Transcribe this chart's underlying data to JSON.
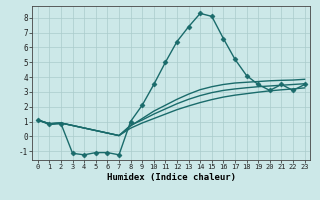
{
  "title": "",
  "xlabel": "Humidex (Indice chaleur)",
  "background_color": "#cce8e8",
  "grid_color": "#aacccc",
  "line_color": "#1a6b6b",
  "xlim": [
    -0.5,
    23.5
  ],
  "ylim": [
    -1.6,
    8.8
  ],
  "yticks": [
    -1,
    0,
    1,
    2,
    3,
    4,
    5,
    6,
    7,
    8
  ],
  "xticks": [
    0,
    1,
    2,
    3,
    4,
    5,
    6,
    7,
    8,
    9,
    10,
    11,
    12,
    13,
    14,
    15,
    16,
    17,
    18,
    19,
    20,
    21,
    22,
    23
  ],
  "series": [
    {
      "x": [
        0,
        1,
        2,
        3,
        4,
        5,
        6,
        7,
        8,
        9,
        10,
        11,
        12,
        13,
        14,
        15,
        16,
        17,
        18,
        19,
        20,
        21,
        22,
        23
      ],
      "y": [
        1.1,
        0.8,
        0.85,
        -1.15,
        -1.25,
        -1.1,
        -1.1,
        -1.25,
        1.0,
        2.1,
        3.5,
        5.0,
        6.4,
        7.4,
        8.3,
        8.1,
        6.6,
        5.2,
        4.1,
        3.5,
        3.1,
        3.5,
        3.1,
        3.5
      ],
      "marker": "D",
      "markersize": 2.5,
      "linewidth": 1.0
    },
    {
      "x": [
        0,
        1,
        2,
        7,
        8,
        9,
        10,
        11,
        12,
        13,
        14,
        15,
        16,
        17,
        18,
        19,
        20,
        21,
        22,
        23
      ],
      "y": [
        1.1,
        0.85,
        0.9,
        0.05,
        0.7,
        1.2,
        1.7,
        2.1,
        2.5,
        2.85,
        3.15,
        3.35,
        3.5,
        3.6,
        3.65,
        3.7,
        3.75,
        3.78,
        3.8,
        3.85
      ],
      "marker": null,
      "markersize": 0,
      "linewidth": 1.0
    },
    {
      "x": [
        0,
        1,
        2,
        7,
        8,
        9,
        10,
        11,
        12,
        13,
        14,
        15,
        16,
        17,
        18,
        19,
        20,
        21,
        22,
        23
      ],
      "y": [
        1.1,
        0.85,
        0.9,
        0.05,
        0.75,
        1.1,
        1.5,
        1.85,
        2.2,
        2.5,
        2.75,
        2.95,
        3.1,
        3.2,
        3.28,
        3.35,
        3.4,
        3.45,
        3.5,
        3.55
      ],
      "marker": null,
      "markersize": 0,
      "linewidth": 1.0
    },
    {
      "x": [
        0,
        1,
        2,
        7,
        8,
        9,
        10,
        11,
        12,
        13,
        14,
        15,
        16,
        17,
        18,
        19,
        20,
        21,
        22,
        23
      ],
      "y": [
        1.1,
        0.85,
        0.9,
        0.05,
        0.55,
        0.9,
        1.2,
        1.5,
        1.8,
        2.05,
        2.28,
        2.48,
        2.65,
        2.78,
        2.88,
        2.98,
        3.07,
        3.14,
        3.2,
        3.27
      ],
      "marker": null,
      "markersize": 0,
      "linewidth": 1.0
    }
  ]
}
